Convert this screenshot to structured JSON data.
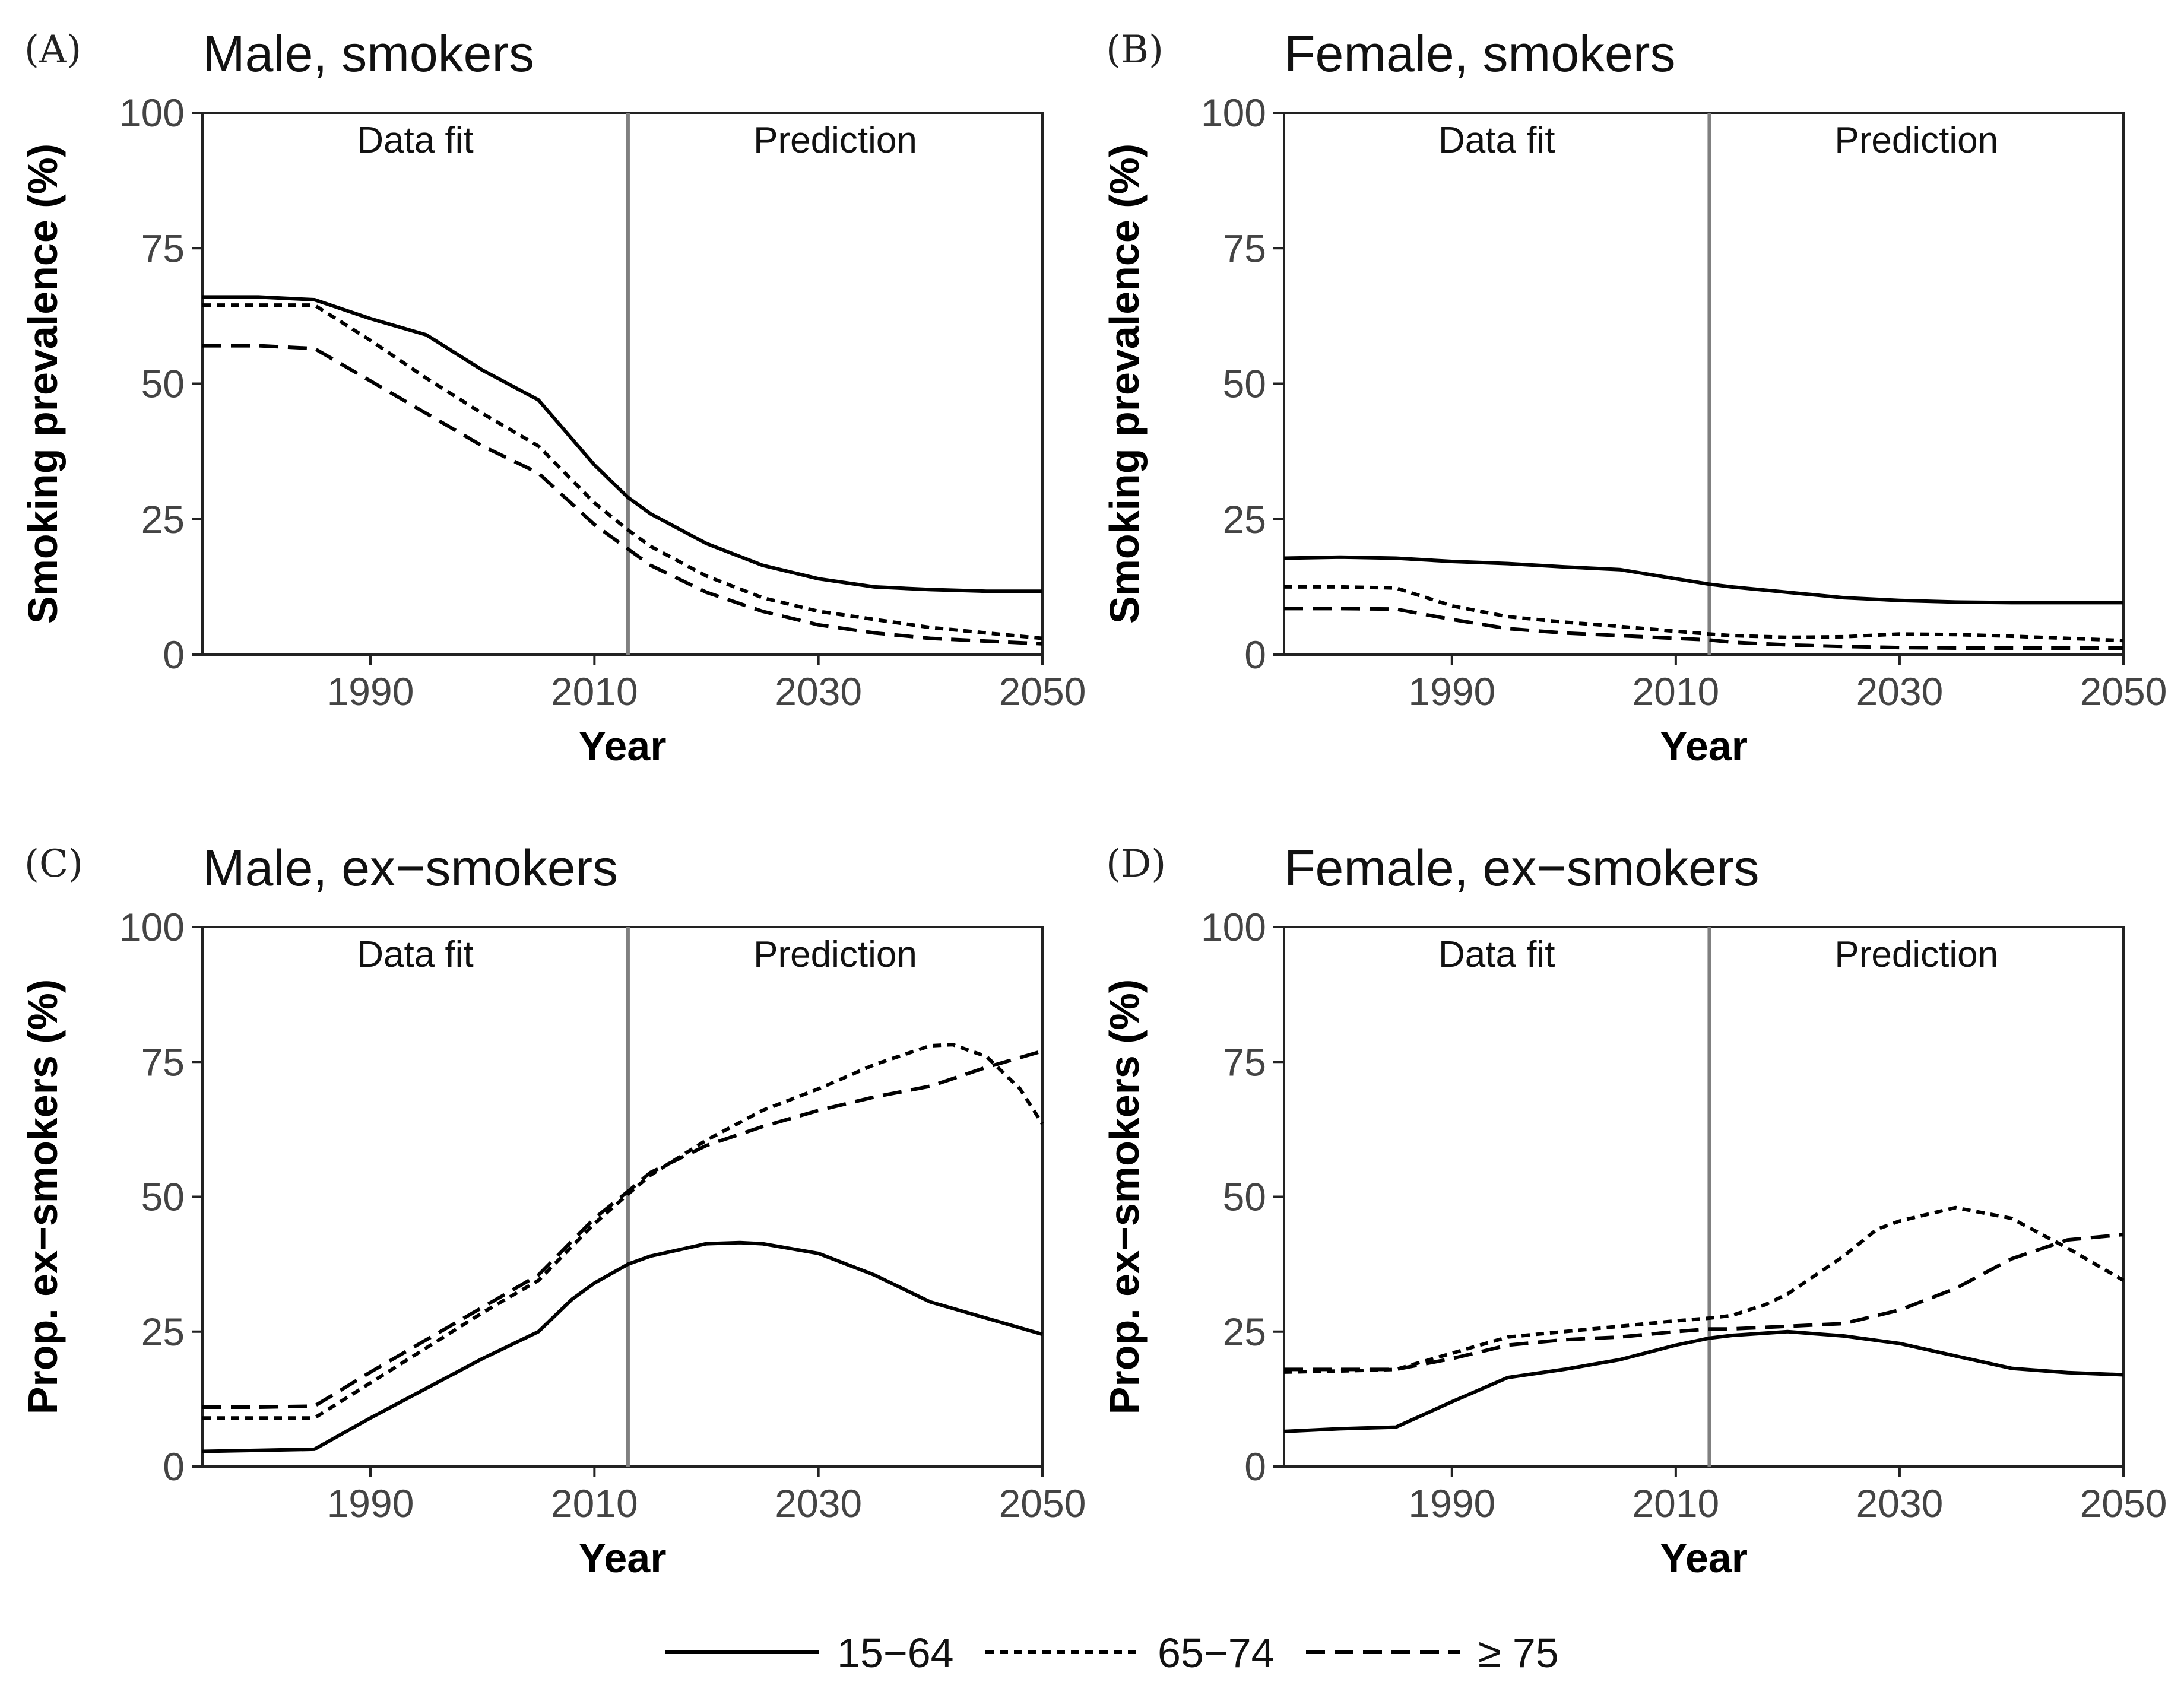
{
  "chart_data": [
    {
      "type": "line",
      "panel": "(A)",
      "title": "Male, smokers",
      "xlabel": "Year",
      "ylabel": "Smoking prevalence (%)",
      "xlim": [
        1975,
        2050
      ],
      "ylim": [
        0,
        100
      ],
      "xticks": [
        1990,
        2010,
        2030,
        2050
      ],
      "yticks": [
        0,
        25,
        50,
        75,
        100
      ],
      "divider_x": 2013,
      "regions": [
        "Data fit",
        "Prediction"
      ],
      "series": [
        {
          "name": "15−64",
          "style": "solid",
          "x": [
            1975,
            1980,
            1985,
            1990,
            1995,
            2000,
            2005,
            2010,
            2013,
            2015,
            2020,
            2025,
            2030,
            2035,
            2040,
            2045,
            2050
          ],
          "y": [
            66,
            66,
            65.5,
            62,
            59,
            52.5,
            47,
            35,
            29,
            26,
            20.5,
            16.5,
            14,
            12.5,
            12,
            11.7,
            11.7
          ]
        },
        {
          "name": "65−74",
          "style": "dotted",
          "x": [
            1975,
            1980,
            1985,
            1990,
            1995,
            2000,
            2005,
            2010,
            2013,
            2015,
            2020,
            2025,
            2030,
            2035,
            2040,
            2045,
            2050
          ],
          "y": [
            64.5,
            64.5,
            64.5,
            58,
            51,
            44.5,
            38.5,
            28,
            23,
            20,
            14.5,
            10.5,
            8,
            6.5,
            5,
            4,
            3
          ]
        },
        {
          "name": "≥75",
          "style": "dashed",
          "x": [
            1975,
            1980,
            1985,
            1990,
            1995,
            2000,
            2005,
            2010,
            2013,
            2015,
            2020,
            2025,
            2030,
            2035,
            2040,
            2045,
            2050
          ],
          "y": [
            57,
            57,
            56.5,
            50.5,
            44.5,
            38.5,
            33.5,
            24,
            19.5,
            16.5,
            11.5,
            8,
            5.5,
            4,
            3,
            2.5,
            2
          ]
        }
      ]
    },
    {
      "type": "line",
      "panel": "(B)",
      "title": "Female, smokers",
      "xlabel": "Year",
      "ylabel": "Smoking prevalence (%)",
      "xlim": [
        1975,
        2050
      ],
      "ylim": [
        0,
        100
      ],
      "xticks": [
        1990,
        2010,
        2030,
        2050
      ],
      "yticks": [
        0,
        25,
        50,
        75,
        100
      ],
      "divider_x": 2013,
      "regions": [
        "Data fit",
        "Prediction"
      ],
      "series": [
        {
          "name": "15−64",
          "style": "solid",
          "x": [
            1975,
            1980,
            1985,
            1990,
            1995,
            2000,
            2005,
            2010,
            2013,
            2015,
            2020,
            2025,
            2030,
            2035,
            2040,
            2045,
            2050
          ],
          "y": [
            17.8,
            18,
            17.8,
            17.2,
            16.8,
            16.2,
            15.7,
            14,
            13,
            12.5,
            11.5,
            10.5,
            10,
            9.7,
            9.6,
            9.6,
            9.6
          ]
        },
        {
          "name": "65−74",
          "style": "dotted",
          "x": [
            1975,
            1980,
            1985,
            1990,
            1995,
            2000,
            2005,
            2010,
            2013,
            2015,
            2020,
            2025,
            2030,
            2035,
            2040,
            2045,
            2050
          ],
          "y": [
            12.5,
            12.5,
            12.3,
            9,
            7,
            6,
            5.2,
            4.3,
            3.8,
            3.5,
            3.2,
            3.3,
            3.8,
            3.7,
            3.4,
            3,
            2.6
          ]
        },
        {
          "name": "≥75",
          "style": "dashed",
          "x": [
            1975,
            1980,
            1985,
            1990,
            1995,
            2000,
            2005,
            2010,
            2013,
            2015,
            2020,
            2025,
            2030,
            2035,
            2040,
            2045,
            2050
          ],
          "y": [
            8.5,
            8.5,
            8.4,
            6.5,
            4.8,
            4,
            3.5,
            3,
            2.7,
            2.3,
            1.8,
            1.5,
            1.3,
            1.2,
            1.2,
            1.2,
            1.2
          ]
        }
      ]
    },
    {
      "type": "line",
      "panel": "(C)",
      "title": "Male, ex−smokers",
      "xlabel": "Year",
      "ylabel": "Prop. ex−smokers (%)",
      "xlim": [
        1975,
        2050
      ],
      "ylim": [
        0,
        100
      ],
      "xticks": [
        1990,
        2010,
        2030,
        2050
      ],
      "yticks": [
        0,
        25,
        50,
        75,
        100
      ],
      "divider_x": 2013,
      "regions": [
        "Data fit",
        "Prediction"
      ],
      "series": [
        {
          "name": "15−64",
          "style": "solid",
          "x": [
            1975,
            1980,
            1985,
            1990,
            1995,
            2000,
            2005,
            2008,
            2010,
            2013,
            2015,
            2020,
            2023,
            2025,
            2030,
            2035,
            2040,
            2045,
            2050
          ],
          "y": [
            2.8,
            3,
            3.2,
            9,
            14.5,
            20,
            25,
            31,
            34,
            37.5,
            39,
            41.3,
            41.5,
            41.3,
            39.5,
            35.5,
            30.5,
            27.5,
            24.5
          ]
        },
        {
          "name": "65−74",
          "style": "dotted",
          "x": [
            1975,
            1980,
            1985,
            1990,
            1995,
            2000,
            2005,
            2010,
            2013,
            2015,
            2020,
            2025,
            2030,
            2035,
            2040,
            2042,
            2045,
            2048,
            2050
          ],
          "y": [
            9,
            9,
            9,
            15.5,
            22,
            28.5,
            34.5,
            45,
            50.5,
            54,
            60.5,
            66,
            70,
            74.5,
            78,
            78.2,
            76,
            70,
            63.5
          ]
        },
        {
          "name": "≥75",
          "style": "dashed",
          "x": [
            1975,
            1980,
            1985,
            1990,
            1995,
            2000,
            2005,
            2010,
            2013,
            2015,
            2020,
            2025,
            2030,
            2035,
            2040,
            2045,
            2050
          ],
          "y": [
            11,
            11,
            11.2,
            17.5,
            23.5,
            29.5,
            35.5,
            46,
            51,
            54.5,
            59.5,
            63,
            66,
            68.5,
            70.5,
            74,
            77
          ]
        }
      ]
    },
    {
      "type": "line",
      "panel": "(D)",
      "title": "Female, ex−smokers",
      "xlabel": "Year",
      "ylabel": "Prop. ex−smokers (%)",
      "xlim": [
        1975,
        2050
      ],
      "ylim": [
        0,
        100
      ],
      "xticks": [
        1990,
        2010,
        2030,
        2050
      ],
      "yticks": [
        0,
        25,
        50,
        75,
        100
      ],
      "divider_x": 2013,
      "regions": [
        "Data fit",
        "Prediction"
      ],
      "series": [
        {
          "name": "15−64",
          "style": "solid",
          "x": [
            1975,
            1980,
            1985,
            1990,
            1995,
            2000,
            2005,
            2010,
            2013,
            2015,
            2020,
            2025,
            2030,
            2035,
            2040,
            2045,
            2050
          ],
          "y": [
            6.5,
            7,
            7.3,
            12,
            16.5,
            18,
            19.8,
            22.5,
            23.8,
            24.3,
            25,
            24.2,
            22.8,
            20.5,
            18.2,
            17.4,
            17
          ]
        },
        {
          "name": "65−74",
          "style": "dotted",
          "x": [
            1975,
            1980,
            1985,
            1990,
            1995,
            2000,
            2005,
            2010,
            2013,
            2015,
            2018,
            2020,
            2025,
            2028,
            2030,
            2035,
            2040,
            2045,
            2050
          ],
          "y": [
            17.5,
            17.7,
            18,
            21,
            24,
            25,
            26,
            27,
            27.5,
            28,
            30,
            32,
            39,
            44,
            45.5,
            48,
            46,
            40.5,
            34.5
          ]
        },
        {
          "name": "≥75",
          "style": "dashed",
          "x": [
            1975,
            1980,
            1985,
            1990,
            1995,
            2000,
            2005,
            2010,
            2013,
            2015,
            2020,
            2025,
            2030,
            2035,
            2040,
            2045,
            2050
          ],
          "y": [
            18,
            18,
            18,
            20,
            22.5,
            23.5,
            24,
            25,
            25.5,
            25.5,
            26,
            26.5,
            29,
            33,
            38.5,
            42,
            43
          ]
        }
      ]
    }
  ],
  "legend": [
    {
      "label": "15−64",
      "style": "solid"
    },
    {
      "label": "65−74",
      "style": "dotted"
    },
    {
      "label": "≥ 75",
      "style": "dashed"
    }
  ]
}
